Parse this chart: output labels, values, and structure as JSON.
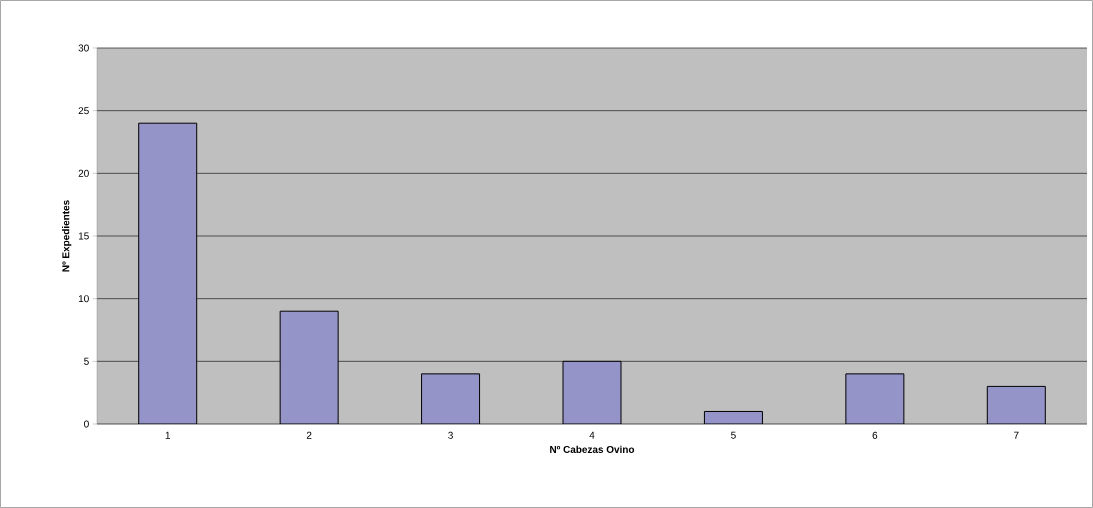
{
  "chart_data": {
    "type": "bar",
    "xlabel": "Nº Cabezas Ovino",
    "ylabel": "Nº Expedientes",
    "categories": [
      "1",
      "2",
      "3",
      "4",
      "5",
      "6",
      "7"
    ],
    "values": [
      24,
      9,
      4,
      5,
      1,
      4,
      3
    ],
    "color": "#9494c8",
    "ylim": [
      0,
      30
    ],
    "yticks": [
      0,
      5,
      10,
      15,
      20,
      25,
      30
    ],
    "grid": "y"
  }
}
